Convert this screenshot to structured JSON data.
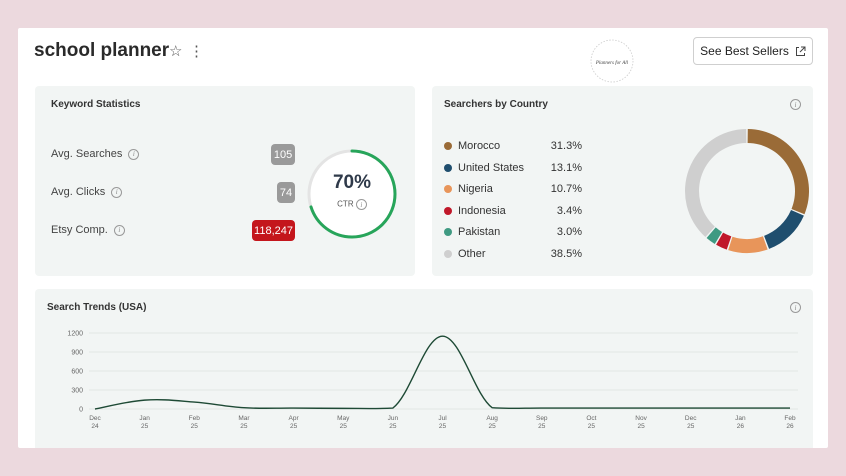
{
  "header": {
    "title": "school planner",
    "logo_text": "Planners for All",
    "best_sellers_label": "See Best Sellers"
  },
  "keyword_stats": {
    "title": "Keyword Statistics",
    "rows": [
      {
        "label": "Avg. Searches",
        "value": "105"
      },
      {
        "label": "Avg. Clicks",
        "value": "74"
      },
      {
        "label": "Etsy Comp.",
        "value": "118,247"
      }
    ],
    "ctr_value": "70%",
    "ctr_label": "CTR",
    "ctr_fraction": 0.7
  },
  "country": {
    "title": "Searchers by Country",
    "items": [
      {
        "name": "Morocco",
        "pct": "31.3%",
        "value": 31.3,
        "color": "#9a6b37"
      },
      {
        "name": "United States",
        "pct": "13.1%",
        "value": 13.1,
        "color": "#1f4e6e"
      },
      {
        "name": "Nigeria",
        "pct": "10.7%",
        "value": 10.7,
        "color": "#e8955a"
      },
      {
        "name": "Indonesia",
        "pct": "3.4%",
        "value": 3.4,
        "color": "#c0182a"
      },
      {
        "name": "Pakistan",
        "pct": "3.0%",
        "value": 3.0,
        "color": "#3f9a82"
      },
      {
        "name": "Other",
        "pct": "38.5%",
        "value": 38.5,
        "color": "#cfcfcf"
      }
    ]
  },
  "trends": {
    "title": "Search Trends (USA)"
  },
  "chart_data": {
    "type": "line",
    "title": "Search Trends (USA)",
    "x": [
      "Dec 24",
      "Jan 25",
      "Feb 25",
      "Mar 25",
      "Apr 25",
      "May 25",
      "Jun 25",
      "Jul 25",
      "Aug 25",
      "Sep 25",
      "Oct 25",
      "Nov 25",
      "Dec 25",
      "Jan 26",
      "Feb 26"
    ],
    "ylim": [
      0,
      1200
    ],
    "yticks": [
      0,
      300,
      600,
      900,
      1200
    ],
    "series": [
      {
        "values": [
          0,
          140,
          110,
          20,
          15,
          10,
          15,
          1150,
          20,
          15,
          15,
          15,
          15,
          15,
          15
        ],
        "color": "#1e4a35"
      }
    ],
    "grid": true
  }
}
